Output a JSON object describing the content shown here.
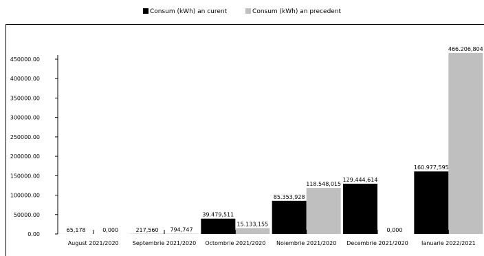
{
  "chart_data": {
    "type": "bar",
    "categories": [
      "August 2021/2020",
      "Septembrie 2021/2020",
      "Octombrie 2021/2020",
      "Noiembrie 2021/2020",
      "Decembrie 2021/2020",
      "Ianuarie 2022/2021"
    ],
    "series": [
      {
        "name": "Consum (kWh) an curent",
        "color": "#000000",
        "values": [
          65.178,
          217.56,
          39479.511,
          85353.928,
          129444.614,
          160977.595
        ],
        "labels": [
          "65,178",
          "217,560",
          "39.479,511",
          "85.353,928",
          "129.444,614",
          "160.977,595"
        ]
      },
      {
        "name": "Consum (kWh) an precedent",
        "color": "#bfbfbf",
        "values": [
          0,
          794.747,
          15133.155,
          118548.015,
          0,
          466206.804
        ],
        "labels": [
          "0,000",
          "794,747",
          "15.133,155",
          "118.548,015",
          "0,000",
          "466.206,804"
        ]
      }
    ],
    "yticks": [
      "0.00",
      "50000.00",
      "100000.00",
      "150000.00",
      "200000.00",
      "250000.00",
      "300000.00",
      "350000.00",
      "400000.00",
      "450000.00"
    ],
    "ylim": [
      0,
      450000
    ],
    "legend_position": "top",
    "grid": false
  }
}
